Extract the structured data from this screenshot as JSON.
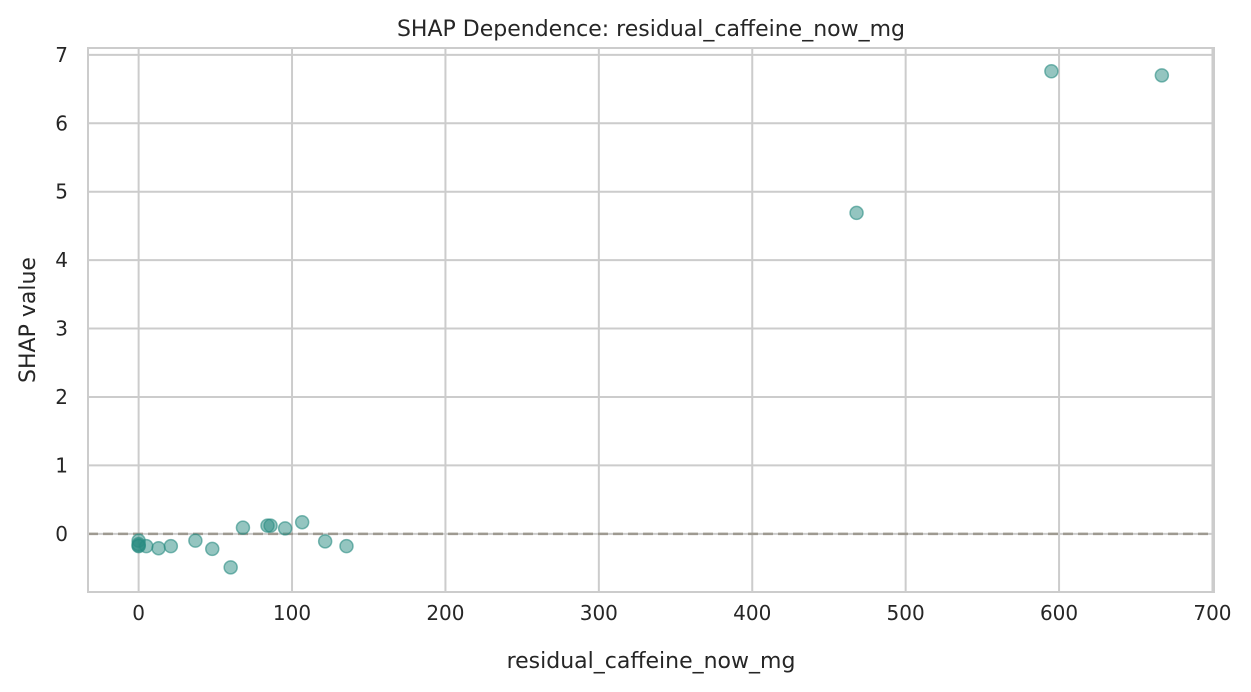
{
  "chart_data": {
    "type": "scatter",
    "title": "SHAP Dependence: residual_caffeine_now_mg",
    "xlabel": "residual_caffeine_now_mg",
    "ylabel": "SHAP value",
    "xlim": [
      -33,
      701
    ],
    "ylim": [
      -0.85,
      7.1
    ],
    "xticks": [
      0,
      100,
      200,
      300,
      400,
      500,
      600,
      700
    ],
    "yticks": [
      0,
      1,
      2,
      3,
      4,
      5,
      6,
      7
    ],
    "grid": true,
    "reference_line": {
      "y": 0,
      "style": "dashed",
      "color": "#9e9a91"
    },
    "point_color": "#2a8c82",
    "points": [
      {
        "x": 0,
        "y": -0.1
      },
      {
        "x": 0,
        "y": -0.15
      },
      {
        "x": 0,
        "y": -0.18
      },
      {
        "x": 0,
        "y": -0.17
      },
      {
        "x": 5,
        "y": -0.18
      },
      {
        "x": 13,
        "y": -0.21
      },
      {
        "x": 21,
        "y": -0.18
      },
      {
        "x": 37,
        "y": -0.1
      },
      {
        "x": 48,
        "y": -0.22
      },
      {
        "x": 60,
        "y": -0.49
      },
      {
        "x": 68,
        "y": 0.09
      },
      {
        "x": 84,
        "y": 0.12
      },
      {
        "x": 86,
        "y": 0.12
      },
      {
        "x": 95.5,
        "y": 0.08
      },
      {
        "x": 106.6,
        "y": 0.17
      },
      {
        "x": 121.6,
        "y": -0.11
      },
      {
        "x": 135.5,
        "y": -0.18
      },
      {
        "x": 468,
        "y": 4.69
      },
      {
        "x": 595,
        "y": 6.76
      },
      {
        "x": 667,
        "y": 6.7
      }
    ]
  }
}
